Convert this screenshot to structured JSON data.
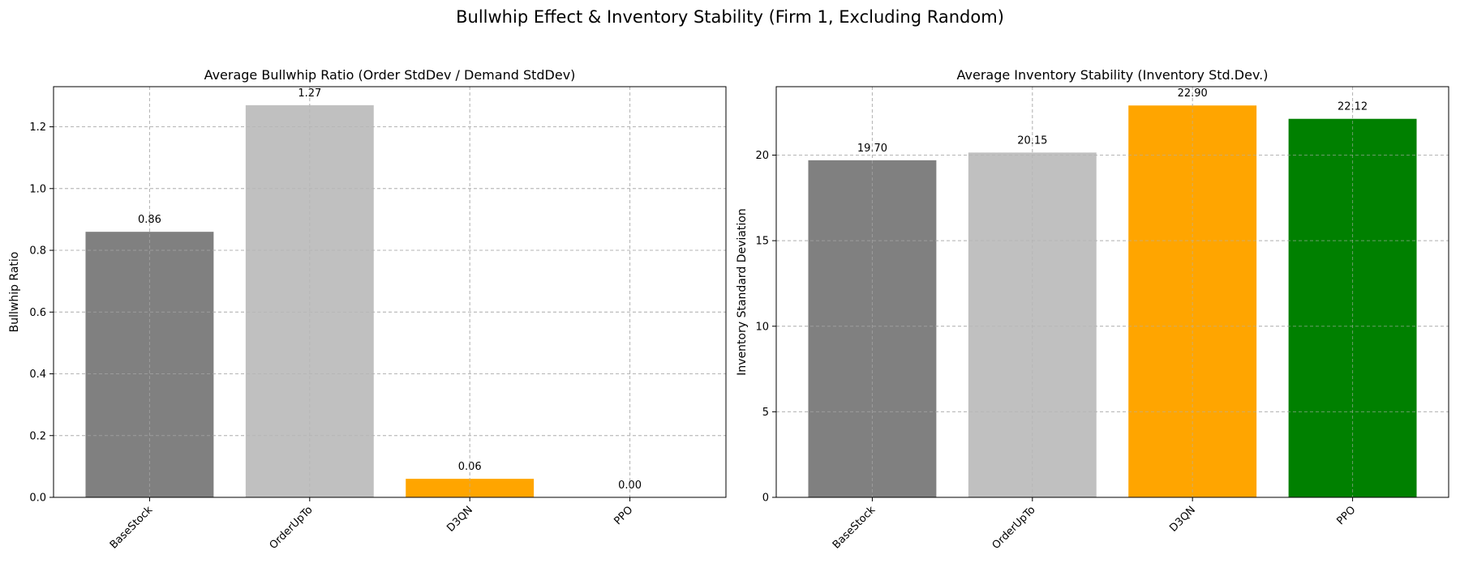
{
  "figure": {
    "suptitle": "Bullwhip Effect & Inventory Stability (Firm 1, Excluding Random)"
  },
  "chart_data": [
    {
      "type": "bar",
      "title": "Average Bullwhip Ratio (Order StdDev / Demand StdDev)",
      "xlabel": "",
      "ylabel": "Bullwhip Ratio",
      "categories": [
        "BaseStock",
        "OrderUpTo",
        "D3QN",
        "PPO"
      ],
      "values": [
        0.86,
        1.27,
        0.06,
        0.0
      ],
      "value_labels": [
        "0.86",
        "1.27",
        "0.06",
        "0.00"
      ],
      "colors": [
        "#808080",
        "#c0c0c0",
        "#ffa500",
        "#008000"
      ],
      "ylim": [
        0,
        1.33
      ],
      "yticks": [
        0.0,
        0.2,
        0.4,
        0.6,
        0.8,
        1.0,
        1.2
      ],
      "ytick_labels": [
        "0.0",
        "0.2",
        "0.4",
        "0.6",
        "0.8",
        "1.0",
        "1.2"
      ],
      "grid": true
    },
    {
      "type": "bar",
      "title": "Average Inventory Stability (Inventory Std.Dev.)",
      "xlabel": "",
      "ylabel": "Inventory Standard Deviation",
      "categories": [
        "BaseStock",
        "OrderUpTo",
        "D3QN",
        "PPO"
      ],
      "values": [
        19.7,
        20.15,
        22.9,
        22.12
      ],
      "value_labels": [
        "19.70",
        "20.15",
        "22.90",
        "22.12"
      ],
      "colors": [
        "#808080",
        "#c0c0c0",
        "#ffa500",
        "#008000"
      ],
      "ylim": [
        0,
        24.0
      ],
      "yticks": [
        0,
        5,
        10,
        15,
        20
      ],
      "ytick_labels": [
        "0",
        "5",
        "10",
        "15",
        "20"
      ],
      "grid": true
    }
  ]
}
